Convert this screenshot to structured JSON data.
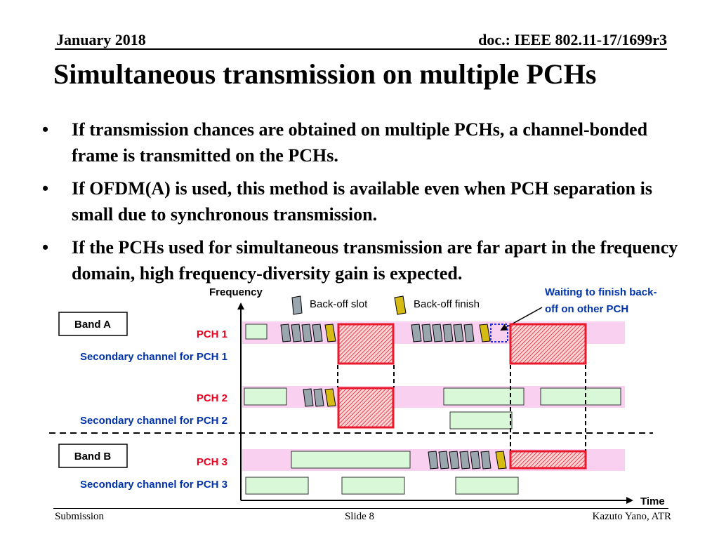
{
  "header": {
    "date": "January 2018",
    "doc": "doc.: IEEE 802.11-17/1699r3"
  },
  "title": "Simultaneous transmission on multiple PCHs",
  "bullets": [
    "If transmission chances are obtained on multiple PCHs, a channel-bonded frame is transmitted on the PCHs.",
    "If OFDM(A) is used, this method is available even when PCH separation is small due to synchronous transmission.",
    "If the PCHs used for simultaneous transmission are far apart in the frequency domain, high frequency-diversity gain is expected."
  ],
  "diagram": {
    "axis_y_label": "Frequency",
    "axis_x_label": "Time",
    "legend_backoff_slot": "Back-off slot",
    "legend_backoff_finish": "Back-off finish",
    "waiting_note_line1": "Waiting to finish back-",
    "waiting_note_line2": "off on other PCH",
    "band_a": "Band A",
    "band_b": "Band B",
    "pch1": "PCH 1",
    "pch2": "PCH 2",
    "pch3": "PCH 3",
    "sec1": "Secondary channel for PCH 1",
    "sec2": "Secondary channel for PCH 2",
    "sec3": "Secondary channel for PCH 3",
    "colors": {
      "pch_label": "#e8001c",
      "secondary_label": "#0033aa",
      "channel_band": "#f9d0f0",
      "frame_fill": "#d8f8d8",
      "backoff_slot": "#9aa6ad",
      "backoff_finish": "#d6bb14",
      "tx_frame": "#e8192c",
      "waiting_box": "#2233dd"
    }
  },
  "footer": {
    "left": "Submission",
    "center": "Slide 8",
    "right": "Kazuto Yano, ATR"
  }
}
